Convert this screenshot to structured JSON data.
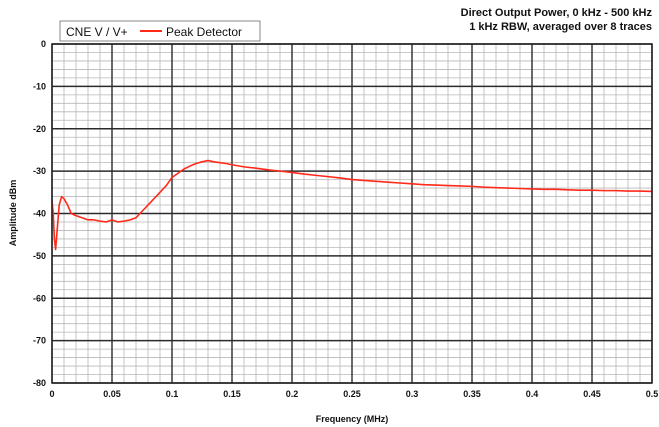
{
  "chart_data": {
    "type": "line",
    "title_lines": [
      "Direct Output Power, 0 kHz - 500 kHz",
      "1 kHz RBW, averaged over 8 traces"
    ],
    "legend_title": "CNE V / V+",
    "legend_position": "top-left",
    "xlabel": "Frequency (MHz)",
    "ylabel": "Amplitude dBm",
    "xlim": [
      0,
      0.5
    ],
    "ylim": [
      -80,
      0
    ],
    "x_major_ticks": [
      0,
      0.05,
      0.1,
      0.15,
      0.2,
      0.25,
      0.3,
      0.35,
      0.4,
      0.45,
      0.5
    ],
    "x_tick_labels": [
      "0",
      "0.05",
      "0.1",
      "0.15",
      "0.2",
      "0.25",
      "0.3",
      "0.35",
      "0.4",
      "0.45",
      "0.5"
    ],
    "y_major_ticks": [
      0,
      -10,
      -20,
      -30,
      -40,
      -50,
      -60,
      -70,
      -80
    ],
    "y_tick_labels": [
      "0",
      "-10",
      "-20",
      "-30",
      "-40",
      "-50",
      "-60",
      "-70",
      "-80"
    ],
    "grid": "major and minor",
    "series": [
      {
        "name": "Peak Detector",
        "color": "#ff2a1a",
        "x": [
          0,
          0.001,
          0.002,
          0.003,
          0.004,
          0.006,
          0.008,
          0.01,
          0.013,
          0.016,
          0.02,
          0.025,
          0.03,
          0.035,
          0.04,
          0.045,
          0.05,
          0.055,
          0.06,
          0.065,
          0.07,
          0.075,
          0.08,
          0.085,
          0.09,
          0.095,
          0.1,
          0.105,
          0.11,
          0.115,
          0.12,
          0.125,
          0.13,
          0.135,
          0.14,
          0.145,
          0.15,
          0.16,
          0.17,
          0.18,
          0.19,
          0.2,
          0.21,
          0.22,
          0.23,
          0.24,
          0.25,
          0.26,
          0.27,
          0.28,
          0.29,
          0.3,
          0.31,
          0.32,
          0.33,
          0.34,
          0.35,
          0.36,
          0.37,
          0.38,
          0.39,
          0.4,
          0.41,
          0.42,
          0.43,
          0.44,
          0.45,
          0.46,
          0.47,
          0.48,
          0.49,
          0.5
        ],
        "y": [
          -37,
          -40,
          -46,
          -48.5,
          -45,
          -38,
          -36,
          -36.5,
          -38,
          -40,
          -40.5,
          -41,
          -41.5,
          -41.5,
          -41.8,
          -42,
          -41.5,
          -42,
          -41.8,
          -41.5,
          -41,
          -39.5,
          -38,
          -36.5,
          -35,
          -33.5,
          -31.5,
          -30.5,
          -29.5,
          -28.8,
          -28.2,
          -27.8,
          -27.5,
          -27.8,
          -28,
          -28.2,
          -28.5,
          -29,
          -29.3,
          -29.7,
          -30,
          -30.3,
          -30.7,
          -31,
          -31.3,
          -31.6,
          -32,
          -32.2,
          -32.4,
          -32.6,
          -32.8,
          -33,
          -33.2,
          -33.3,
          -33.4,
          -33.5,
          -33.6,
          -33.8,
          -33.9,
          -34,
          -34.1,
          -34.2,
          -34.3,
          -34.3,
          -34.4,
          -34.5,
          -34.5,
          -34.6,
          -34.6,
          -34.7,
          -34.7,
          -34.8
        ]
      }
    ]
  }
}
